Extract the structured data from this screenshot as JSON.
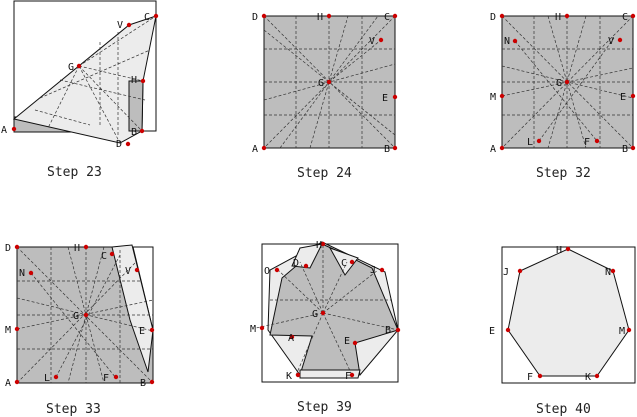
{
  "panels": [
    {
      "caption": "Step 23",
      "points": [
        {
          "id": "A",
          "label": "A"
        },
        {
          "id": "B",
          "label": "B"
        },
        {
          "id": "C",
          "label": "C"
        },
        {
          "id": "D",
          "label": "D"
        },
        {
          "id": "G",
          "label": "G"
        },
        {
          "id": "H",
          "label": "H"
        },
        {
          "id": "V",
          "label": "V"
        }
      ]
    },
    {
      "caption": "Step 24",
      "points": [
        {
          "id": "A",
          "label": "A"
        },
        {
          "id": "B",
          "label": "B"
        },
        {
          "id": "C",
          "label": "C"
        },
        {
          "id": "D",
          "label": "D"
        },
        {
          "id": "E",
          "label": "E"
        },
        {
          "id": "G",
          "label": "G"
        },
        {
          "id": "H",
          "label": "H"
        },
        {
          "id": "V",
          "label": "V"
        }
      ]
    },
    {
      "caption": "Step 32",
      "points": [
        {
          "id": "A",
          "label": "A"
        },
        {
          "id": "B",
          "label": "B"
        },
        {
          "id": "C",
          "label": "C"
        },
        {
          "id": "D",
          "label": "D"
        },
        {
          "id": "E",
          "label": "E"
        },
        {
          "id": "F",
          "label": "F"
        },
        {
          "id": "G",
          "label": "G"
        },
        {
          "id": "H",
          "label": "H"
        },
        {
          "id": "L",
          "label": "L"
        },
        {
          "id": "M",
          "label": "M"
        },
        {
          "id": "N",
          "label": "N"
        },
        {
          "id": "V",
          "label": "V"
        }
      ]
    },
    {
      "caption": "Step 33",
      "points": [
        {
          "id": "A",
          "label": "A"
        },
        {
          "id": "B",
          "label": "B"
        },
        {
          "id": "C",
          "label": "C"
        },
        {
          "id": "D",
          "label": "D"
        },
        {
          "id": "E",
          "label": "E"
        },
        {
          "id": "F",
          "label": "F"
        },
        {
          "id": "G",
          "label": "G"
        },
        {
          "id": "H",
          "label": "H"
        },
        {
          "id": "L",
          "label": "L"
        },
        {
          "id": "M",
          "label": "M"
        },
        {
          "id": "N",
          "label": "N"
        },
        {
          "id": "V",
          "label": "V"
        }
      ]
    },
    {
      "caption": "Step 39",
      "points": [
        {
          "id": "A",
          "label": "A"
        },
        {
          "id": "B",
          "label": "B"
        },
        {
          "id": "C",
          "label": "C"
        },
        {
          "id": "D",
          "label": "D"
        },
        {
          "id": "E",
          "label": "E"
        },
        {
          "id": "F",
          "label": "F"
        },
        {
          "id": "G",
          "label": "G"
        },
        {
          "id": "H",
          "label": "H"
        },
        {
          "id": "J",
          "label": "J"
        },
        {
          "id": "K",
          "label": "K"
        },
        {
          "id": "M",
          "label": "M"
        },
        {
          "id": "O",
          "label": "O"
        }
      ]
    },
    {
      "caption": "Step 40",
      "points": [
        {
          "id": "E",
          "label": "E"
        },
        {
          "id": "F",
          "label": "F"
        },
        {
          "id": "H",
          "label": "H"
        },
        {
          "id": "J",
          "label": "J"
        },
        {
          "id": "K",
          "label": "K"
        },
        {
          "id": "M",
          "label": "M"
        },
        {
          "id": "N",
          "label": "N"
        }
      ]
    }
  ]
}
